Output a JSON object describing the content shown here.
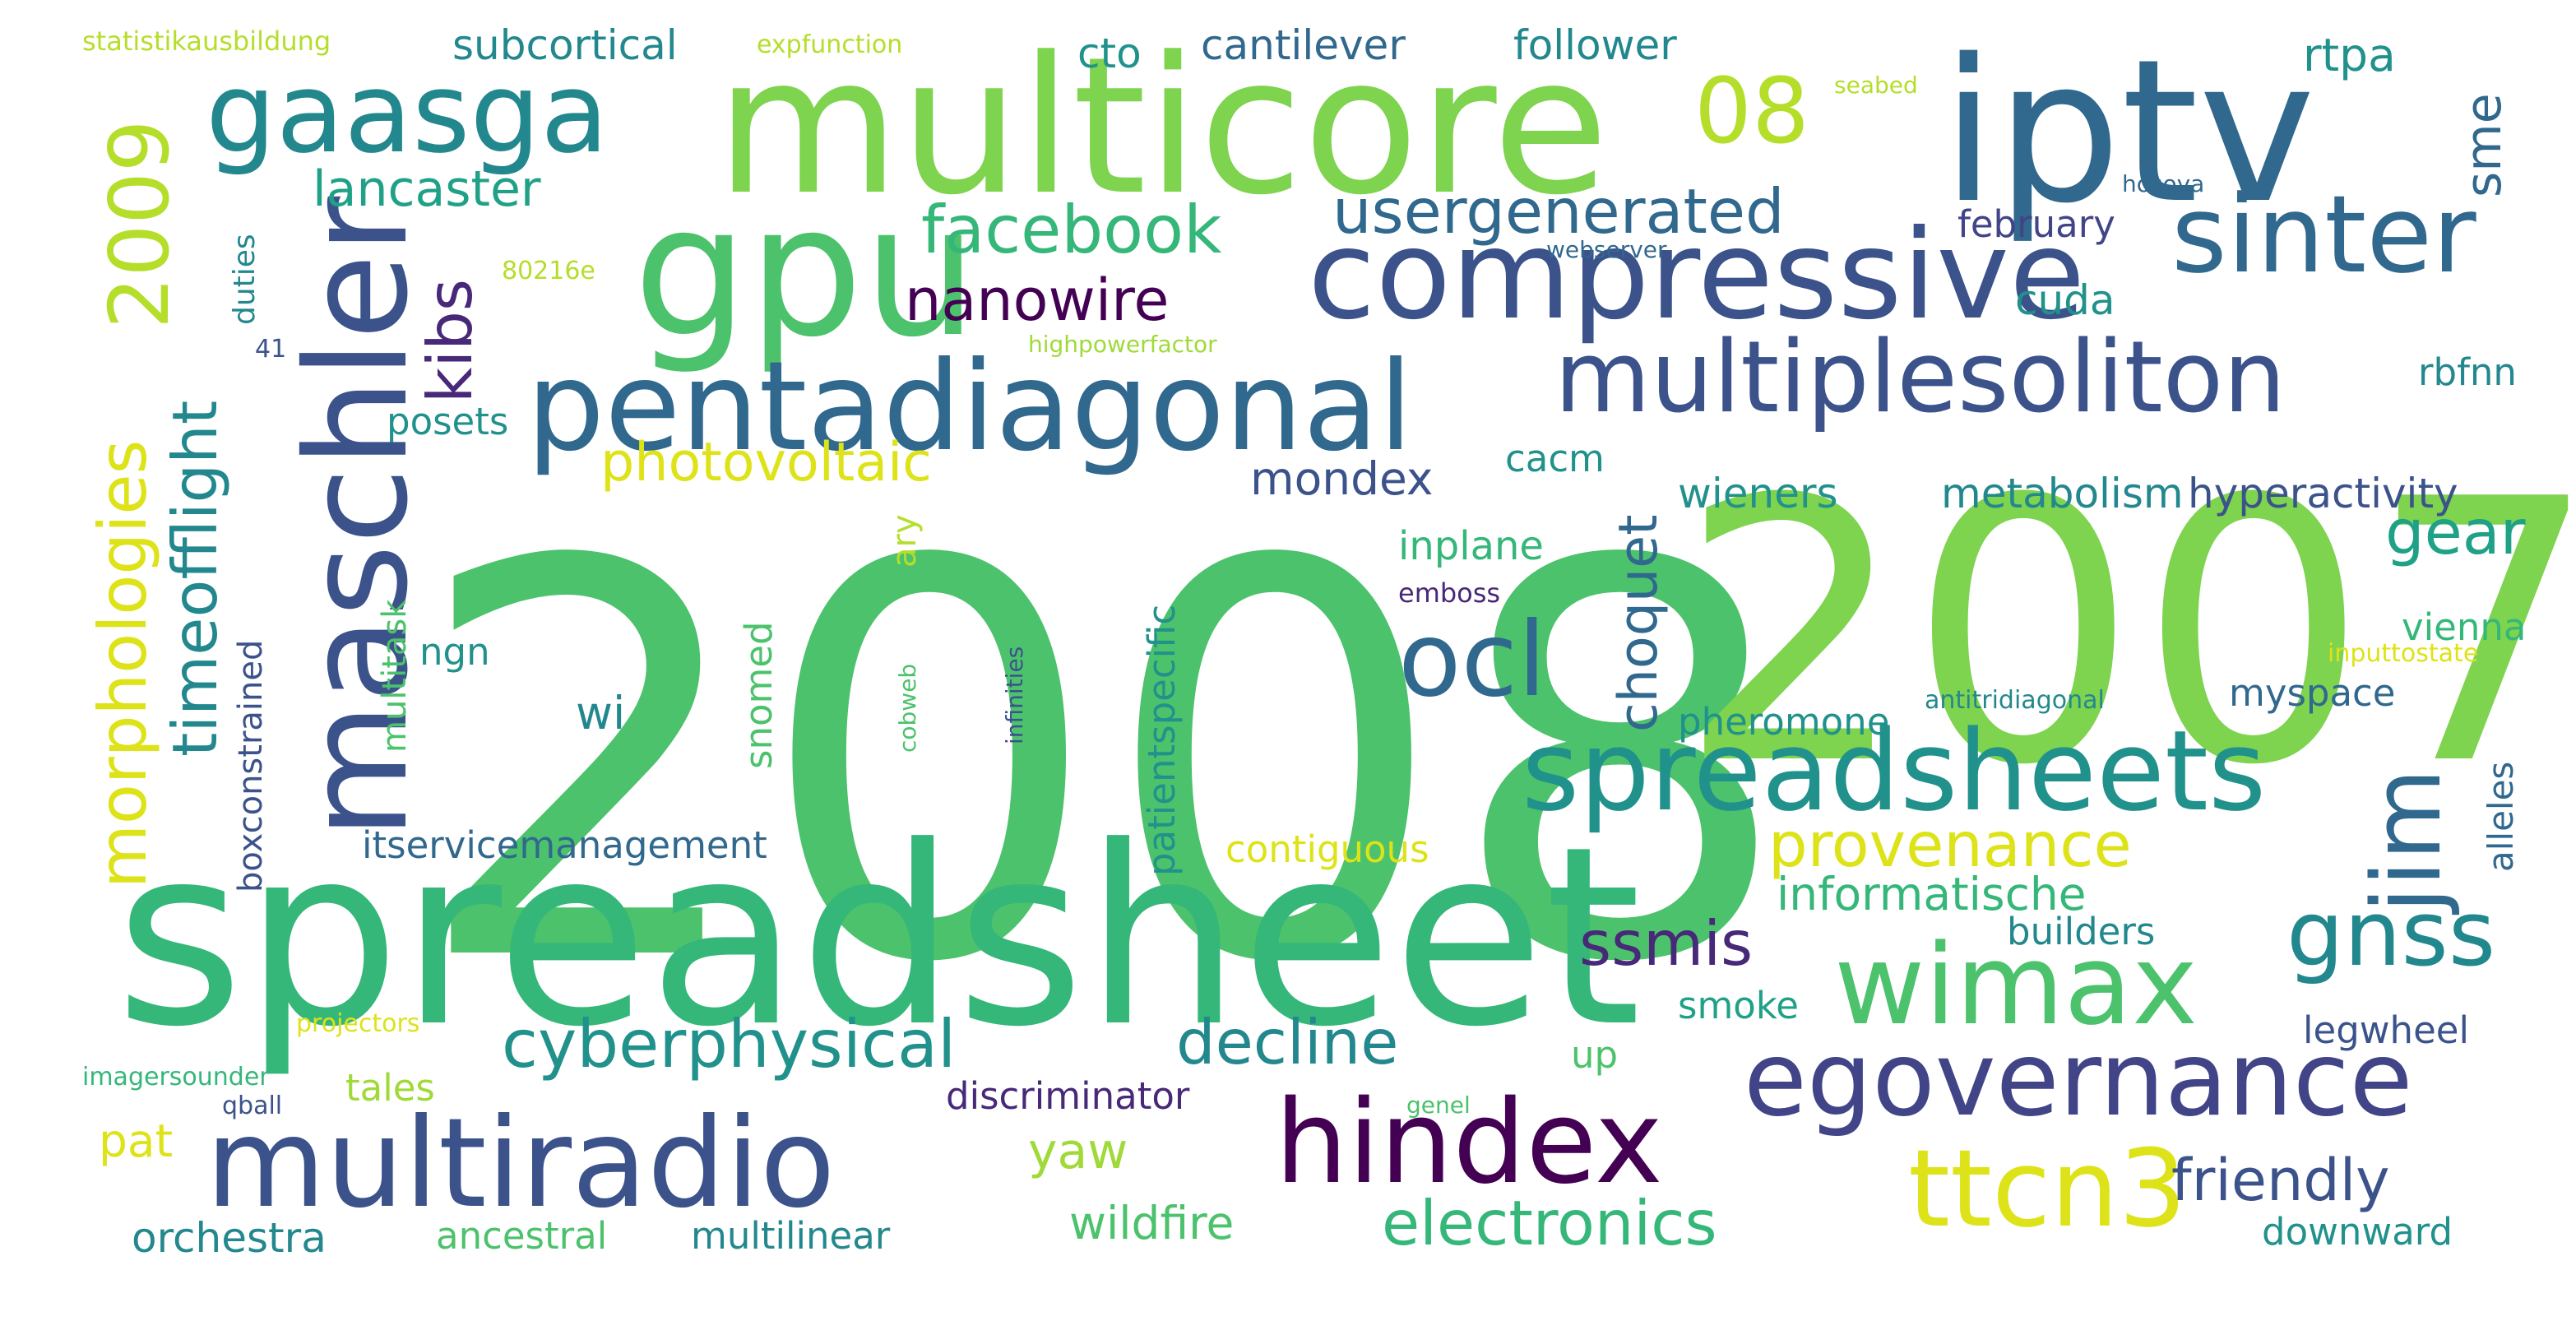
{
  "word_cloud": {
    "colors": {
      "background": "#ffffff",
      "green": "#4cc26c",
      "lime": "#7ed34f",
      "yellowgreen": "#b5de2b",
      "yellow": "#dde318",
      "teal": "#21918c",
      "darkteal": "#23888e",
      "blue": "#3b528b",
      "indigo": "#414487",
      "purple": "#440154",
      "deeppurple": "#482878",
      "navy": "#31688e",
      "seagreen": "#35b779",
      "mint": "#1fa187",
      "olive": "#a0da39"
    },
    "words": [
      "2008",
      "2007",
      "spreadsheet",
      "multicore",
      "iptv",
      "gpu",
      "maschler",
      "compressive",
      "pentadiagonal",
      "multiplesoliton",
      "spreadsheets",
      "gaasga",
      "sinter",
      "multiradio",
      "hindex",
      "egovernance",
      "wimax",
      "ttcn3",
      "gnss",
      "jim",
      "ocl",
      "08",
      "2009",
      "morphologies",
      "timeofflight",
      "kibs",
      "facebook",
      "nanowire",
      "usergenerated",
      "photovoltaic",
      "provenance",
      "informatische",
      "cyberphysical",
      "decline",
      "ssmis",
      "electronics",
      "wildfire",
      "friendly",
      "gear",
      "choquet",
      "lancaster",
      "subcortical",
      "cantilever",
      "follower",
      "cto",
      "rtpa",
      "sme",
      "cuda",
      "rbfnn",
      "february",
      "hyperactivity",
      "metabolism",
      "wieners",
      "cacm",
      "posets",
      "mondex",
      "inplane",
      "vienna",
      "myspace",
      "pheromone",
      "emboss",
      "antitridiagonal",
      "inputtostate",
      "alleles",
      "builders",
      "smoke",
      "legwheel",
      "up",
      "yaw",
      "pat",
      "tales",
      "discriminator",
      "orchestra",
      "ancestral",
      "multilinear",
      "downward",
      "contiguous",
      "itservicemanagement",
      "boxconstrained",
      "multitask",
      "ngn",
      "wi",
      "snomed",
      "patientspecific",
      "ary",
      "cobweb",
      "infinities",
      "duties",
      "80216e",
      "41",
      "highpowerfactor",
      "webserver",
      "hosoya",
      "seabed",
      "expfunction",
      "statistikausbildung",
      "imagersounder",
      "qball",
      "projectors",
      "genel"
    ]
  }
}
